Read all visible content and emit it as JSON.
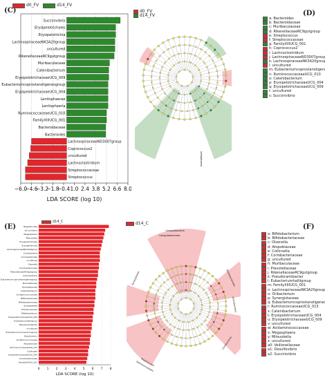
{
  "panels": {
    "C": "(C)",
    "D": "(D)",
    "E": "(E)",
    "F": "(F)"
  },
  "legend_top": [
    {
      "label": "d0_FV",
      "color": "#e3262b"
    },
    {
      "label": "d14_FV",
      "color": "#2c8a2c"
    }
  ],
  "legend_bottom": [
    {
      "label": "d14_C",
      "color": "#e3262b"
    }
  ],
  "chart_data": [
    {
      "type": "bar",
      "orientation": "horizontal",
      "xlabel": "LDA SCORE (log 10)",
      "xlim": [
        -6.0,
        8.0
      ],
      "xticks": [
        "−6.0",
        "−4.6",
        "−3.2",
        "−1.8",
        "−0.4",
        "1.0",
        "2.4",
        "3.8",
        "5.2",
        "6.6",
        "8.0"
      ],
      "tick_values": [
        -6.0,
        -4.6,
        -3.2,
        -1.8,
        -0.4,
        1.0,
        2.4,
        3.8,
        5.2,
        6.6,
        8.0
      ],
      "series": [
        {
          "name": "d0_FV",
          "color": "#e3262b"
        },
        {
          "name": "d14_FV",
          "color": "#2c8a2c"
        }
      ],
      "bars": [
        {
          "label": "Succinivibrio",
          "value": 7.0,
          "group": "d14_FV"
        },
        {
          "label": "Erysipelotrichales",
          "value": 6.4,
          "group": "d14_FV"
        },
        {
          "label": "Erysipelotrichia",
          "value": 6.4,
          "group": "d14_FV"
        },
        {
          "label": "LachnospiraceaeNK3A20group",
          "value": 6.3,
          "group": "d14_FV"
        },
        {
          "label": "uncultured",
          "value": 6.3,
          "group": "d14_FV"
        },
        {
          "label": "RikenellaceaeRC9gutgroup",
          "value": 6.2,
          "group": "d14_FV"
        },
        {
          "label": "Muribaculaceae",
          "value": 5.6,
          "group": "d14_FV"
        },
        {
          "label": "Catenibacterium",
          "value": 5.5,
          "group": "d14_FV"
        },
        {
          "label": "ErysipelotrichaceaeUCG_009",
          "value": 5.5,
          "group": "d14_FV"
        },
        {
          "label": "Eubacteriumcoprostanoligenesgroup",
          "value": 5.4,
          "group": "d14_FV"
        },
        {
          "label": "ErysipelotrichaceaeUCG_004",
          "value": 5.4,
          "group": "d14_FV"
        },
        {
          "label": "Lentisphaerae",
          "value": 5.4,
          "group": "d14_FV"
        },
        {
          "label": "Lentisphaeria",
          "value": 5.4,
          "group": "d14_FV"
        },
        {
          "label": "RuminococcaceaeUCG_010",
          "value": 5.2,
          "group": "d14_FV"
        },
        {
          "label": "FamilyXIIIUCG_001",
          "value": 5.2,
          "group": "d14_FV"
        },
        {
          "label": "Bacteroidaceae",
          "value": 5.1,
          "group": "d14_FV"
        },
        {
          "label": "Bacteroides",
          "value": 5.1,
          "group": "d14_FV"
        },
        {
          "label": "LachnospiraceaeND3007group",
          "value": -4.6,
          "group": "d0_FV"
        },
        {
          "label": "Coprococcus2",
          "value": -4.7,
          "group": "d0_FV"
        },
        {
          "label": "uncultured",
          "value": -4.9,
          "group": "d0_FV"
        },
        {
          "label": "Lachnoclostridium",
          "value": -5.1,
          "group": "d0_FV"
        },
        {
          "label": "Streptococcaceae",
          "value": -5.4,
          "group": "d0_FV"
        },
        {
          "label": "Streptococcus",
          "value": -5.4,
          "group": "d0_FV"
        }
      ]
    },
    {
      "type": "bar",
      "orientation": "horizontal",
      "xlabel": "LDA SCORE (log 10)",
      "xlim": [
        0,
        8
      ],
      "xticks": [
        "0",
        "1",
        "2",
        "3",
        "4",
        "5",
        "6",
        "7",
        "8"
      ],
      "tick_values": [
        0,
        1,
        2,
        3,
        4,
        5,
        6,
        7,
        8
      ],
      "series": [
        {
          "name": "d14_C",
          "color": "#e3262b"
        }
      ],
      "bars": [
        {
          "label": "Negativicutes",
          "value": 7.8
        },
        {
          "label": "Succinivibrio",
          "value": 7.4
        },
        {
          "label": "Megasphaera",
          "value": 7.3
        },
        {
          "label": "Mitsuokella",
          "value": 7.2
        },
        {
          "label": "Erysipelotrichales",
          "value": 7.1
        },
        {
          "label": "Erysipelotrichia",
          "value": 7.0
        },
        {
          "label": "LachnospiraceaeNK3A20group",
          "value": 6.9
        },
        {
          "label": "Coriobacteriia",
          "value": 6.8
        },
        {
          "label": "Coriobacteriales",
          "value": 6.8
        },
        {
          "label": "uncultured",
          "value": 6.8
        },
        {
          "label": "Olsenella",
          "value": 6.7
        },
        {
          "label": "Coriobacteriaceae",
          "value": 6.7
        },
        {
          "label": "RikenellaceaeRC9gutgroup",
          "value": 6.6
        },
        {
          "label": "Actinobacteria",
          "value": 6.6
        },
        {
          "label": "Eubacteriumcoprostanoligenesgroup",
          "value": 6.5
        },
        {
          "label": "Prevotellaceae",
          "value": 6.4
        },
        {
          "label": "Synergistaceae",
          "value": 6.4
        },
        {
          "label": "Catenibacterium",
          "value": 6.3
        },
        {
          "label": "Acidaminococcaceae",
          "value": 6.3
        },
        {
          "label": "Bifidobacteriales",
          "value": 6.3
        },
        {
          "label": "Bifidobacteriaceae",
          "value": 6.2
        },
        {
          "label": "Synergistetes",
          "value": 6.2
        },
        {
          "label": "Muribaculaceae",
          "value": 6.1
        },
        {
          "label": "Bifidobacterium",
          "value": 6.1
        },
        {
          "label": "ErysipelotrichaceaeUCG_009",
          "value": 6.0
        },
        {
          "label": "Eubacteriumhalliigroup",
          "value": 6.0
        },
        {
          "label": "Pseudoramibacter",
          "value": 5.9
        },
        {
          "label": "uncultured",
          "value": 5.9
        },
        {
          "label": "Eubacteriumruminantiumgroup",
          "value": 5.8
        },
        {
          "label": "Desulfovibrio",
          "value": 5.8
        },
        {
          "label": "Acidaminococcaceae",
          "value": 5.7
        },
        {
          "label": "Atopobiaceae",
          "value": 5.7
        },
        {
          "label": "RuminococcaceaeUCG_013",
          "value": 5.6
        },
        {
          "label": "Collinsella",
          "value": 5.5
        },
        {
          "label": "ErysipelotrichaceaeUCG_004",
          "value": 5.5
        },
        {
          "label": "Coriobacteriaceae",
          "value": 5.4
        },
        {
          "label": "FamilyXIIIUCG_001",
          "value": 5.3
        }
      ]
    }
  ],
  "cladogram_top_labels": [
    "a: Bacteroides",
    "b: Bacteroidaceae",
    "c: Muribaculaceae",
    "d: RikenellaceaeRC9gutgroup",
    "e: Streptococcus",
    "f: Streptococcaceae",
    "g: FamilyXIIIUCG_001",
    "h: Coprococcus2",
    "i: Lachnoclostridium",
    "j: LachnospiraceaeND3007group",
    "k: LachnospiraceaeNK3A20group",
    "l: uncultured",
    "m: Eubacteriumcoprostanoligenesgroup",
    "n: RuminococcaceaeUCG_010",
    "o: Catenibacterium",
    "p: ErysipelotrichaceaeUCG_004",
    "q: ErysipelotrichaceaeUCG_009",
    "r: uncultured",
    "s: Succinivibrio"
  ],
  "cladogram_top_colors": [
    "#2c8a2c",
    "#2c8a2c",
    "#2c8a2c",
    "#2c8a2c",
    "#e3262b",
    "#e3262b",
    "#2c8a2c",
    "#e3262b",
    "#e3262b",
    "#e3262b",
    "#2c8a2c",
    "#e3262b",
    "#2c8a2c",
    "#2c8a2c",
    "#2c8a2c",
    "#2c8a2c",
    "#2c8a2c",
    "#2c8a2c",
    "#2c8a2c"
  ],
  "cladogram_bottom_labels": [
    "a: Bifidobacterium",
    "b: Bifidobacteriaceae",
    "c: Olsenella",
    "d: Atopobiaceae",
    "e: Collinsella",
    "f: Coriobacteriaceae",
    "g: uncultured",
    "h: Muribaculaceae",
    "i: Prevotellaceae",
    "j: RikenellaceaeRC9gutgroup",
    "k: Pseudoramibacter",
    "l: Eubacteriumhalliigroup",
    "m: FamilyXIIIUCG_001",
    "n: LachnospiraceaeNK3A20group",
    "o: Oribacterium",
    "p: Synergistaceae",
    "q: Eubacteriumcoprostanoligenesgroup",
    "r: RuminococcaceaeUCG_013",
    "s: Catenibacterium",
    "t: ErysipelotrichaceaeUCG_004",
    "u: ErysipelotrichaceaeUCG_009",
    "v: uncultured",
    "w: Acidaminococcaceae",
    "x: Megasphaera",
    "y: Mitsuokella",
    "z: uncultured",
    "a0: Veillonellaceae",
    "a1: Desulfovibrio",
    "a2: Succinivibrio"
  ],
  "clado_top_sector_labels": [
    "Lentisphaerae"
  ],
  "clado_bottom_sector_labels": [
    "Campylobacteria",
    "Campylobacterales",
    "Bifidobacteriales",
    "Actinobacteria",
    "Coriobacteriia",
    "Negativicutes",
    "Selenomonadales",
    "Synergistetes"
  ]
}
